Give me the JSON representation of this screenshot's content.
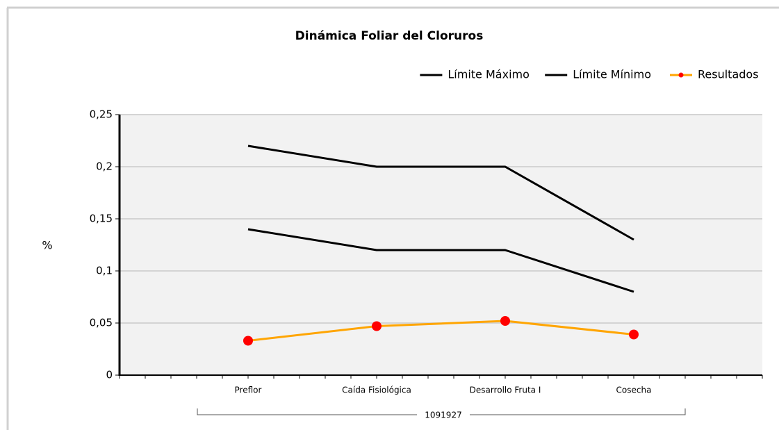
{
  "chart_data": {
    "type": "line",
    "title": "Dinámica Foliar del Cloruros",
    "y_label": "%",
    "group_label": "1091927",
    "categories": [
      "Preflor",
      "Caída Fisiológica",
      "Desarrollo Fruta I",
      "Cosecha"
    ],
    "series": [
      {
        "name": "Límite Máximo",
        "color": "#000000",
        "values": [
          0.22,
          0.2,
          0.2,
          0.13
        ]
      },
      {
        "name": "Límite Mínimo",
        "color": "#000000",
        "values": [
          0.14,
          0.12,
          0.12,
          0.08
        ]
      },
      {
        "name": "Resultados",
        "color": "#ffa500",
        "marker_color": "#ff0000",
        "values": [
          0.033,
          0.047,
          0.052,
          0.039
        ]
      }
    ],
    "ylim": [
      0,
      0.25
    ],
    "yticks": [
      0,
      {
        "value": 0.05,
        "label": "0,05"
      },
      {
        "value": 0.1,
        "label": "0,1"
      },
      {
        "value": 0.15,
        "label": "0,15"
      },
      {
        "value": 0.2,
        "label": "0,2"
      },
      {
        "value": 0.25,
        "label": "0,25"
      }
    ],
    "grid": true
  }
}
